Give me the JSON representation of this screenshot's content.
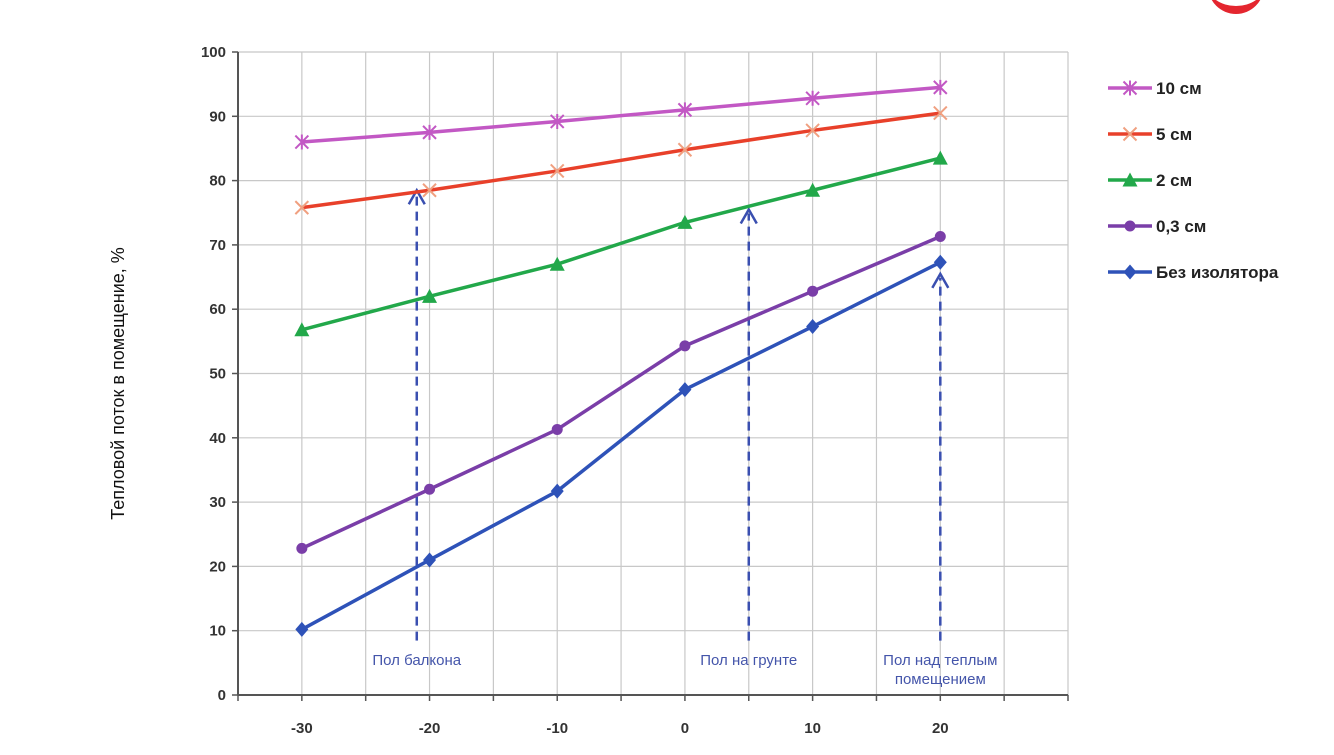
{
  "chart_data": {
    "type": "line",
    "ylabel": "Тепловой поток в помещение, %",
    "ylim": [
      0,
      100
    ],
    "yticks": [
      0,
      10,
      20,
      30,
      40,
      50,
      60,
      70,
      80,
      90,
      100
    ],
    "xlim": [
      -35,
      30
    ],
    "xticks": [
      -30,
      -20,
      -10,
      0,
      10,
      20
    ],
    "grid": true,
    "legend_position": "right",
    "x": [
      -30,
      -20,
      -10,
      0,
      10,
      20
    ],
    "series": [
      {
        "name": "10 см",
        "color": "#c258c4",
        "marker": "star",
        "values": [
          86,
          87.5,
          89.2,
          91,
          92.8,
          94.5
        ]
      },
      {
        "name": "5 см",
        "color": "#e8402a",
        "marker": "x",
        "values": [
          75.8,
          78.5,
          81.5,
          84.8,
          87.8,
          90.5
        ]
      },
      {
        "name": "2 см",
        "color": "#22a84a",
        "marker": "triangle",
        "values": [
          56.8,
          62,
          67,
          73.5,
          78.5,
          83.5
        ]
      },
      {
        "name": "0,3 см",
        "color": "#7a3ea8",
        "marker": "circle",
        "values": [
          22.8,
          32,
          41.3,
          54.3,
          62.8,
          71.3
        ]
      },
      {
        "name": "Без изолятора",
        "color": "#2e52b8",
        "marker": "diamond",
        "values": [
          10.2,
          21,
          31.7,
          47.5,
          57.3,
          67.3
        ]
      }
    ],
    "annotations": [
      {
        "label": "Пол балкона",
        "x": -21,
        "y_from": 1,
        "y_to": 78.5
      },
      {
        "label": "Пол на грунте",
        "x": 5,
        "y_from": 1,
        "y_to": 75.5
      },
      {
        "label": "Пол над теплым помещением",
        "lines": [
          "Пол над теплым",
          "помещением"
        ],
        "x": 20,
        "y_from": 1,
        "y_to": 65.5
      }
    ]
  }
}
